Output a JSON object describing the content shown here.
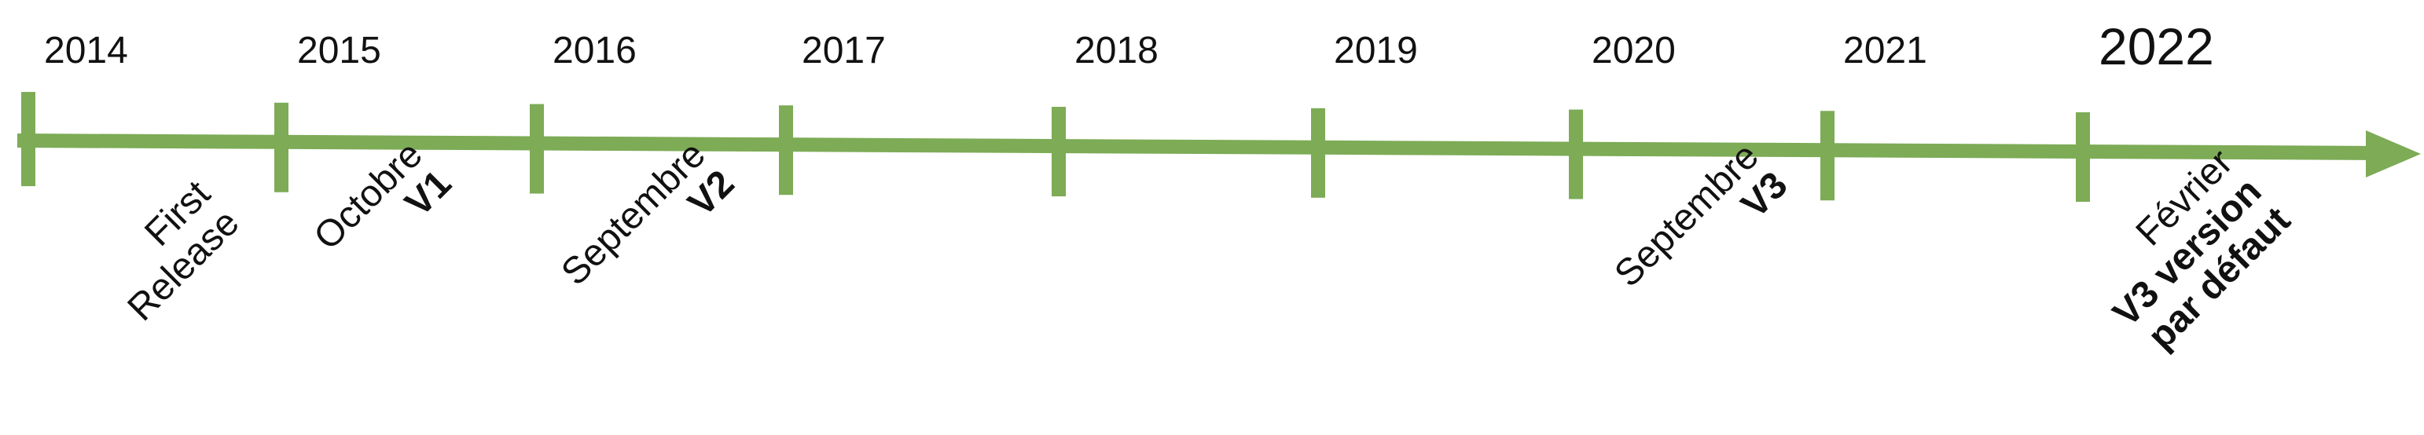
{
  "colors": {
    "line": "#7dab56",
    "text": "#111111"
  },
  "years": [
    "2014",
    "2015",
    "2016",
    "2017",
    "2018",
    "2019",
    "2020",
    "2021",
    "2022"
  ],
  "emphasized_year": "2022",
  "events": [
    {
      "year": "2014",
      "lines": [
        {
          "text": "First",
          "bold": false
        },
        {
          "text": "Release",
          "bold": false
        }
      ]
    },
    {
      "year": "2015",
      "lines": [
        {
          "text": "Octobre",
          "bold": false
        },
        {
          "text": "V1",
          "bold": true
        }
      ]
    },
    {
      "year": "2016",
      "lines": [
        {
          "text": "Septembre",
          "bold": false
        },
        {
          "text": "V2",
          "bold": true
        }
      ]
    },
    {
      "year": "2020",
      "lines": [
        {
          "text": "Septembre",
          "bold": false
        },
        {
          "text": "V3",
          "bold": true
        }
      ]
    },
    {
      "year": "2022",
      "lines": [
        {
          "text": "Février",
          "bold": false
        },
        {
          "text": "V3 version",
          "bold": true
        },
        {
          "text": "par défaut",
          "bold": true
        }
      ]
    }
  ]
}
